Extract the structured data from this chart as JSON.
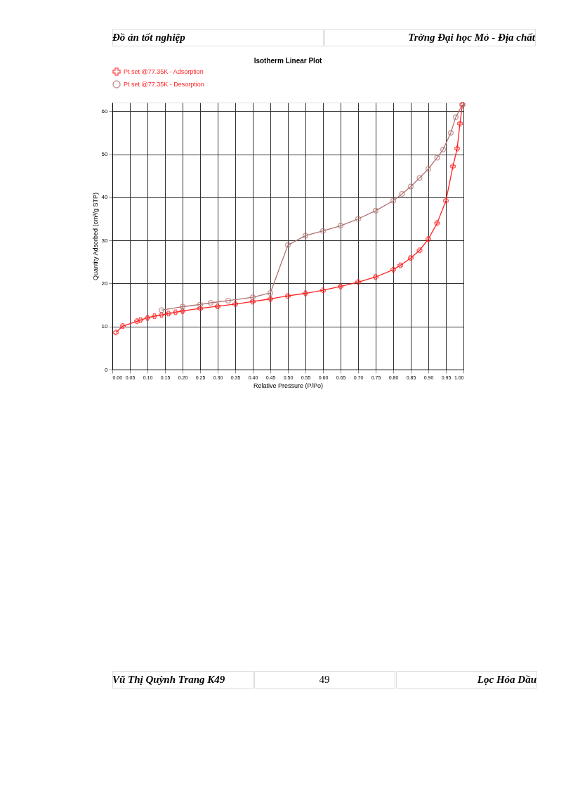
{
  "chart_data": {
    "type": "line",
    "title": "Isotherm Linear Plot",
    "xlabel": "Relative Pressure (P/Po)",
    "ylabel": "Quantity Adsorbed (cm³/g STP)",
    "series": [
      {
        "name": "Pt set @77.35K - Adsorption",
        "color": "#ff2020",
        "marker": "cross",
        "x": [
          0.01,
          0.03,
          0.07,
          0.08,
          0.1,
          0.12,
          0.14,
          0.16,
          0.18,
          0.2,
          0.25,
          0.3,
          0.35,
          0.4,
          0.45,
          0.5,
          0.55,
          0.6,
          0.65,
          0.7,
          0.75,
          0.8,
          0.82,
          0.85,
          0.875,
          0.9,
          0.925,
          0.95,
          0.97,
          0.982,
          0.99,
          0.997
        ],
        "values": [
          8.6,
          10.1,
          11.2,
          11.5,
          12.0,
          12.4,
          12.7,
          13.0,
          13.3,
          13.6,
          14.2,
          14.7,
          15.2,
          15.8,
          16.4,
          17.1,
          17.7,
          18.4,
          19.3,
          20.3,
          21.5,
          23.2,
          24.2,
          25.9,
          27.7,
          30.3,
          34.0,
          39.2,
          47.2,
          51.3,
          57.1,
          61.5
        ]
      },
      {
        "name": "Pt set @77.35K - Desorption",
        "color": "#b07070",
        "marker": "circle",
        "x": [
          0.997,
          0.978,
          0.964,
          0.942,
          0.925,
          0.9,
          0.875,
          0.85,
          0.825,
          0.8,
          0.75,
          0.7,
          0.65,
          0.6,
          0.55,
          0.5,
          0.45,
          0.4,
          0.33,
          0.28,
          0.25,
          0.2,
          0.14
        ],
        "values": [
          61.5,
          58.6,
          55.0,
          51.1,
          49.2,
          46.6,
          44.5,
          42.5,
          40.8,
          39.2,
          36.9,
          35.0,
          33.4,
          32.2,
          31.1,
          28.9,
          17.8,
          16.8,
          16.0,
          15.5,
          15.1,
          14.6,
          13.8
        ]
      }
    ],
    "xlim": [
      0,
      1
    ],
    "ylim": [
      0,
      62
    ],
    "xticks": [
      {
        "value": 0,
        "label": "0.00"
      },
      {
        "value": 0.05,
        "label": "0.05"
      },
      {
        "value": 0.1,
        "label": "0.10"
      },
      {
        "value": 0.15,
        "label": "0.15"
      },
      {
        "value": 0.2,
        "label": "0.20"
      },
      {
        "value": 0.25,
        "label": "0.25"
      },
      {
        "value": 0.3,
        "label": "0.30"
      },
      {
        "value": 0.35,
        "label": "0.35"
      },
      {
        "value": 0.4,
        "label": "0.40"
      },
      {
        "value": 0.45,
        "label": "0.45"
      },
      {
        "value": 0.5,
        "label": "0.50"
      },
      {
        "value": 0.55,
        "label": "0.55"
      },
      {
        "value": 0.6,
        "label": "0.60"
      },
      {
        "value": 0.65,
        "label": "0.65"
      },
      {
        "value": 0.7,
        "label": "0.70"
      },
      {
        "value": 0.75,
        "label": "0.75"
      },
      {
        "value": 0.8,
        "label": "0.80"
      },
      {
        "value": 0.85,
        "label": "0.85"
      },
      {
        "value": 0.9,
        "label": "0.90"
      },
      {
        "value": 0.95,
        "label": "0.95"
      },
      {
        "value": 1,
        "label": "1.00"
      }
    ],
    "yticks": [
      0,
      10,
      20,
      30,
      40,
      50,
      60
    ],
    "grid": true,
    "legend": "top left",
    "annotations": [
      "Đồ án tốt nghiệp",
      "Trờng    Đại học Mỏ - Địa chất",
      "Vũ Thị Quỳnh Trang K49",
      "49",
      "Lọc Hóa Dầu"
    ]
  }
}
